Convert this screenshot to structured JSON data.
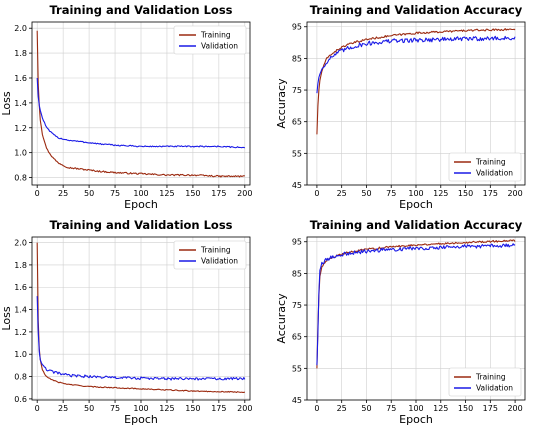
{
  "colors": {
    "training": "#9b2a10",
    "validation": "#1a1ae6",
    "grid": "#cfcfcf"
  },
  "chart_data": [
    {
      "type": "line",
      "title": "Training and Validation Loss",
      "xlabel": "Epoch",
      "ylabel": "Loss",
      "xlim": [
        -5,
        205
      ],
      "ylim": [
        0.74,
        2.05
      ],
      "xticks": [
        0,
        25,
        50,
        75,
        100,
        125,
        150,
        175,
        200
      ],
      "yticks": [
        0.8,
        1.0,
        1.2,
        1.4,
        1.6,
        1.8,
        2.0
      ],
      "ytick_decimals": 1,
      "grid": true,
      "legend_position": "top-right",
      "series": [
        {
          "name": "Training",
          "color": "#9b2a10",
          "noise": 0.006,
          "x": [
            0,
            1,
            2,
            3,
            5,
            8,
            10,
            15,
            20,
            25,
            30,
            40,
            50,
            60,
            75,
            100,
            125,
            150,
            175,
            200
          ],
          "y": [
            1.98,
            1.55,
            1.38,
            1.26,
            1.15,
            1.06,
            1.02,
            0.96,
            0.92,
            0.9,
            0.88,
            0.87,
            0.86,
            0.85,
            0.84,
            0.83,
            0.82,
            0.82,
            0.81,
            0.81
          ]
        },
        {
          "name": "Validation",
          "color": "#1a1ae6",
          "noise": 0.005,
          "x": [
            0,
            1,
            2,
            3,
            5,
            8,
            10,
            15,
            20,
            25,
            30,
            40,
            50,
            60,
            75,
            100,
            125,
            150,
            175,
            200
          ],
          "y": [
            1.6,
            1.45,
            1.38,
            1.34,
            1.28,
            1.22,
            1.19,
            1.15,
            1.12,
            1.11,
            1.1,
            1.09,
            1.08,
            1.07,
            1.06,
            1.05,
            1.05,
            1.05,
            1.05,
            1.04
          ]
        }
      ]
    },
    {
      "type": "line",
      "title": "Training and Validation Accuracy",
      "xlabel": "Epoch",
      "ylabel": "Accuracy",
      "xlim": [
        -10,
        210
      ],
      "ylim": [
        45,
        96.5
      ],
      "xticks": [
        0,
        25,
        50,
        75,
        100,
        125,
        150,
        175,
        200
      ],
      "yticks": [
        45,
        55,
        65,
        75,
        85,
        95
      ],
      "ytick_decimals": 0,
      "grid": true,
      "legend_position": "bottom-right",
      "series": [
        {
          "name": "Training",
          "color": "#9b2a10",
          "noise": 0.3,
          "x": [
            0,
            1,
            2,
            3,
            5,
            8,
            10,
            15,
            20,
            25,
            30,
            40,
            50,
            75,
            100,
            125,
            150,
            175,
            200
          ],
          "y": [
            61,
            70,
            75,
            78,
            81,
            83.5,
            85,
            86.5,
            87.5,
            88.5,
            89.2,
            90.2,
            91,
            92.2,
            93,
            93.4,
            93.8,
            94,
            94.2
          ]
        },
        {
          "name": "Validation",
          "color": "#1a1ae6",
          "noise": 0.7,
          "x": [
            0,
            1,
            2,
            3,
            5,
            8,
            10,
            15,
            20,
            25,
            30,
            40,
            50,
            75,
            100,
            125,
            150,
            175,
            200
          ],
          "y": [
            74,
            77,
            79,
            80,
            81.5,
            83,
            84,
            85.5,
            86.5,
            87.3,
            88,
            89,
            89.7,
            90.5,
            90.8,
            91,
            91.2,
            91.3,
            91.4
          ]
        }
      ]
    },
    {
      "type": "line",
      "title": "Training and Validation Loss",
      "xlabel": "Epoch",
      "ylabel": "Loss",
      "xlim": [
        -5,
        205
      ],
      "ylim": [
        0.59,
        2.05
      ],
      "xticks": [
        0,
        25,
        50,
        75,
        100,
        125,
        150,
        175,
        200
      ],
      "yticks": [
        0.6,
        0.8,
        1.0,
        1.2,
        1.4,
        1.6,
        1.8,
        2.0
      ],
      "ytick_decimals": 1,
      "grid": true,
      "legend_position": "top-right",
      "series": [
        {
          "name": "Training",
          "color": "#9b2a10",
          "noise": 0.004,
          "x": [
            0,
            1,
            2,
            3,
            5,
            8,
            10,
            15,
            20,
            25,
            30,
            50,
            75,
            100,
            125,
            150,
            175,
            200
          ],
          "y": [
            2.0,
            1.3,
            1.05,
            0.95,
            0.86,
            0.81,
            0.79,
            0.77,
            0.75,
            0.74,
            0.73,
            0.71,
            0.7,
            0.69,
            0.68,
            0.67,
            0.665,
            0.66
          ]
        },
        {
          "name": "Validation",
          "color": "#1a1ae6",
          "noise": 0.012,
          "x": [
            0,
            1,
            2,
            3,
            5,
            8,
            10,
            15,
            20,
            25,
            30,
            50,
            75,
            100,
            125,
            150,
            175,
            200
          ],
          "y": [
            1.52,
            1.2,
            1.02,
            0.95,
            0.9,
            0.87,
            0.86,
            0.84,
            0.83,
            0.82,
            0.81,
            0.8,
            0.79,
            0.785,
            0.78,
            0.78,
            0.78,
            0.78
          ]
        }
      ]
    },
    {
      "type": "line",
      "title": "Training and Validation Accuracy",
      "xlabel": "Epoch",
      "ylabel": "Accuracy",
      "xlim": [
        -10,
        210
      ],
      "ylim": [
        45,
        96.5
      ],
      "xticks": [
        0,
        25,
        50,
        75,
        100,
        125,
        150,
        175,
        200
      ],
      "yticks": [
        45,
        55,
        65,
        75,
        85,
        95
      ],
      "ytick_decimals": 0,
      "grid": true,
      "legend_position": "bottom-right",
      "series": [
        {
          "name": "Training",
          "color": "#9b2a10",
          "noise": 0.3,
          "x": [
            0,
            1,
            2,
            3,
            5,
            8,
            10,
            15,
            20,
            25,
            30,
            50,
            75,
            100,
            125,
            150,
            175,
            200
          ],
          "y": [
            55,
            68,
            78,
            84,
            87,
            88.5,
            89.2,
            90,
            90.6,
            91,
            91.5,
            92.6,
            93.4,
            94,
            94.4,
            94.8,
            95.1,
            95.3
          ]
        },
        {
          "name": "Validation",
          "color": "#1a1ae6",
          "noise": 0.6,
          "x": [
            0,
            1,
            2,
            3,
            5,
            8,
            10,
            15,
            20,
            25,
            30,
            50,
            75,
            100,
            125,
            150,
            175,
            200
          ],
          "y": [
            56,
            66,
            79,
            86,
            88,
            89,
            89.5,
            90,
            90.5,
            91,
            91.2,
            92,
            92.6,
            93,
            93.2,
            93.5,
            93.7,
            93.8
          ]
        }
      ]
    }
  ]
}
